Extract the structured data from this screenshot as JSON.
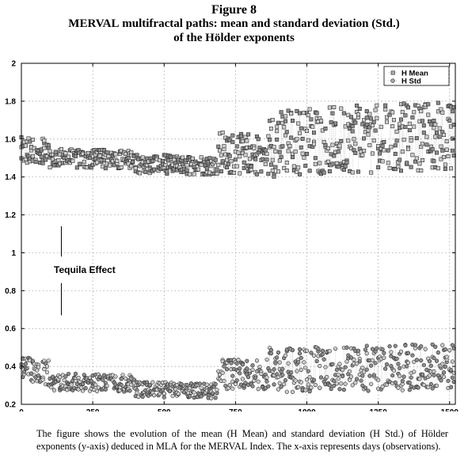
{
  "figure_label": "Figure 8",
  "title_sc": "MERVAL",
  "title_rest": " multifractal paths: mean and standard deviation (Std.)",
  "title_line2": "of the Hölder exponents",
  "caption": {
    "p1": "The figure shows the evolution of the mean (H Mean) and standard deviation (H Std.) of Hölder exponents (y-axis) deduced in ",
    "sc1": "MLA",
    "p2": " for the ",
    "sc2": "MERVAL",
    "p3": " Index. The x-axis represents days (observations)."
  },
  "annotation": {
    "text": "Tequila  Effect",
    "x": 140
  },
  "chart_data": {
    "type": "scatter",
    "xlim": [
      0,
      1520
    ],
    "ylim": [
      0.2,
      2.0
    ],
    "x_ticks": [
      0,
      250,
      500,
      750,
      1000,
      1250,
      1500
    ],
    "y_ticks": [
      0.2,
      0.4,
      0.6,
      0.8,
      1,
      1.2,
      1.4,
      1.6,
      1.8,
      2
    ],
    "grid": true,
    "legend_position": "top-right",
    "sample_step": 5,
    "series": [
      {
        "name": "H  Mean",
        "marker": "square",
        "bands": [
          {
            "x0": 0,
            "x1": 100,
            "center": [
              1.53,
              1.52
            ],
            "spread": 0.08
          },
          {
            "x0": 100,
            "x1": 400,
            "center": [
              1.5,
              1.49
            ],
            "spread": 0.05
          },
          {
            "x0": 400,
            "x1": 690,
            "center": [
              1.47,
              1.46
            ],
            "spread": 0.05
          },
          {
            "x0": 690,
            "x1": 870,
            "center": [
              1.53,
              1.52
            ],
            "spread": 0.11
          },
          {
            "x0": 870,
            "x1": 1520,
            "center": [
              1.58,
              1.62
            ],
            "spread": 0.18
          }
        ]
      },
      {
        "name": "H  Std",
        "marker": "circle",
        "bands": [
          {
            "x0": 0,
            "x1": 100,
            "center": [
              0.4,
              0.36
            ],
            "spread": 0.07
          },
          {
            "x0": 100,
            "x1": 400,
            "center": [
              0.32,
              0.31
            ],
            "spread": 0.045
          },
          {
            "x0": 400,
            "x1": 690,
            "center": [
              0.28,
              0.27
            ],
            "spread": 0.04
          },
          {
            "x0": 690,
            "x1": 870,
            "center": [
              0.36,
              0.36
            ],
            "spread": 0.08
          },
          {
            "x0": 870,
            "x1": 1520,
            "center": [
              0.38,
              0.4
            ],
            "spread": 0.12
          }
        ]
      }
    ]
  }
}
